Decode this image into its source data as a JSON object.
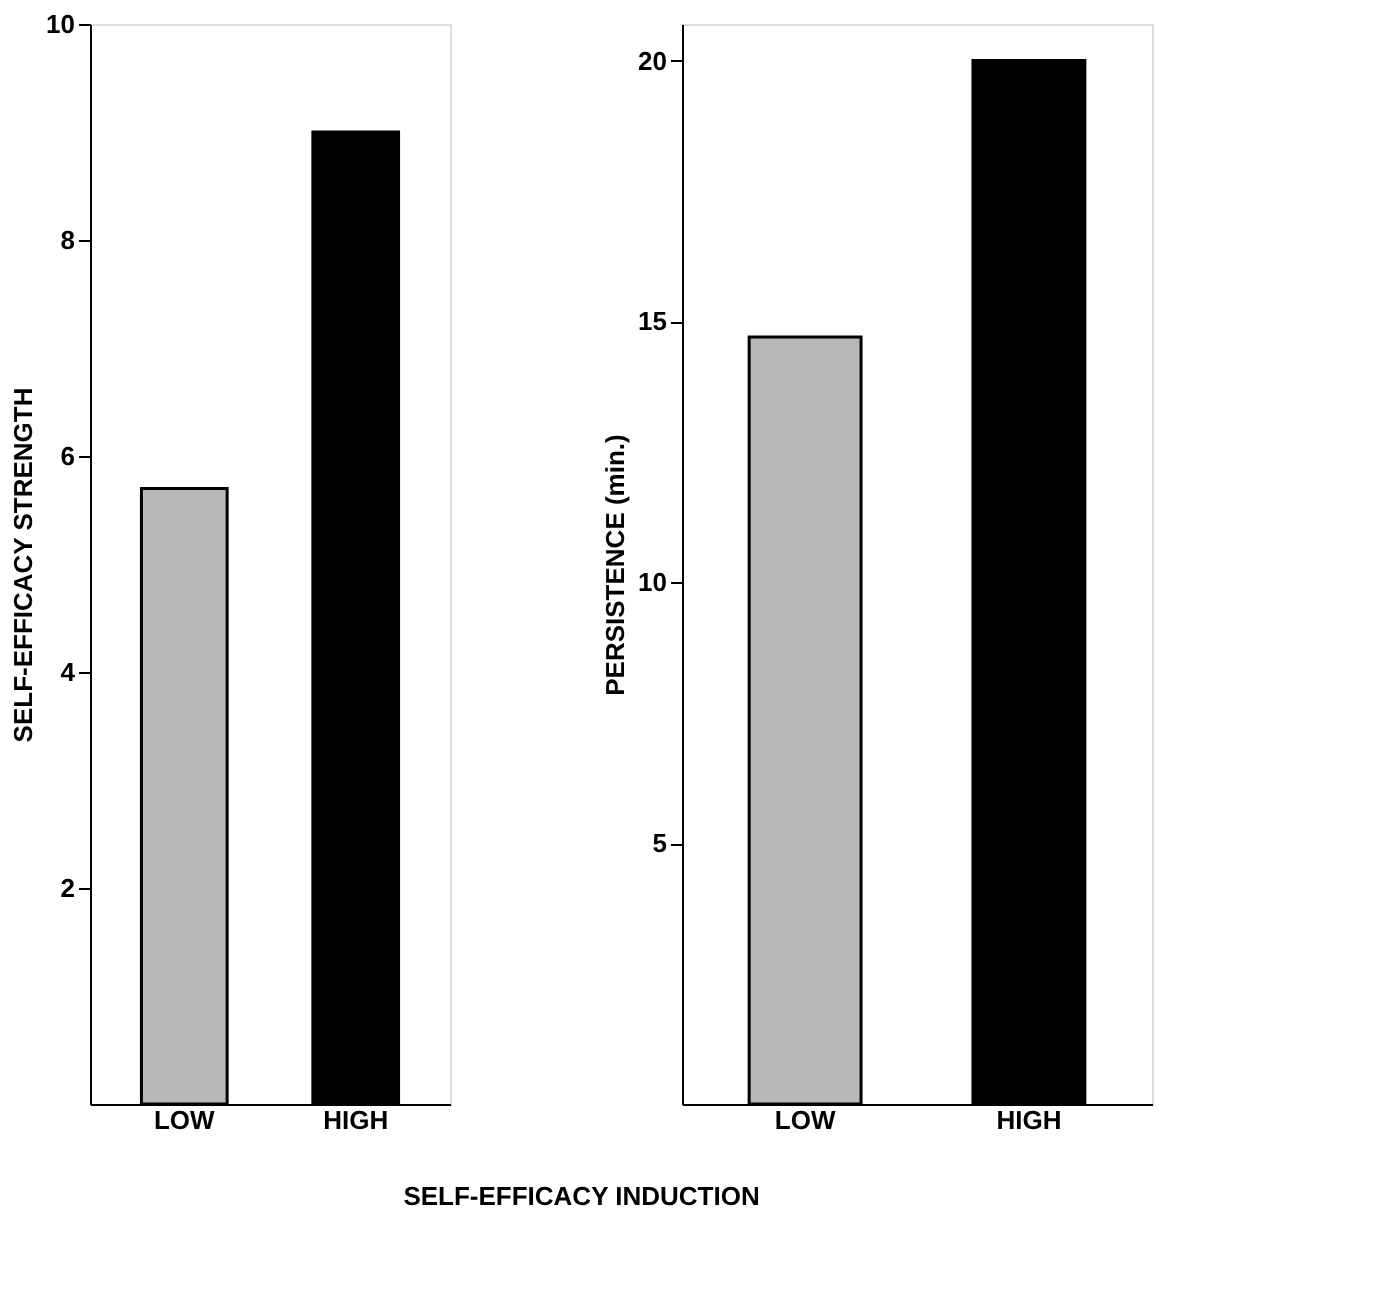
{
  "chart_data": [
    {
      "type": "bar",
      "categories": [
        "LOW",
        "HIGH"
      ],
      "values": [
        5.7,
        9.0
      ],
      "colors": [
        "#b8b8b8",
        "#000000"
      ],
      "ylabel": "SELF-EFFICACY STRENGTH",
      "xlabel": "SELF-EFFICACY INDUCTION",
      "ylim": [
        0,
        10
      ],
      "yticks": [
        2,
        4,
        6,
        8,
        10
      ],
      "grid": false,
      "legend": false
    },
    {
      "type": "bar",
      "categories": [
        "LOW",
        "HIGH"
      ],
      "values": [
        14.7,
        20.0
      ],
      "colors": [
        "#b8b8b8",
        "#000000"
      ],
      "ylabel": "PERSISTENCE (min.)",
      "ylim": [
        0,
        20.7
      ],
      "yticks": [
        5,
        10,
        15,
        20
      ],
      "grid": false,
      "legend": false
    }
  ]
}
